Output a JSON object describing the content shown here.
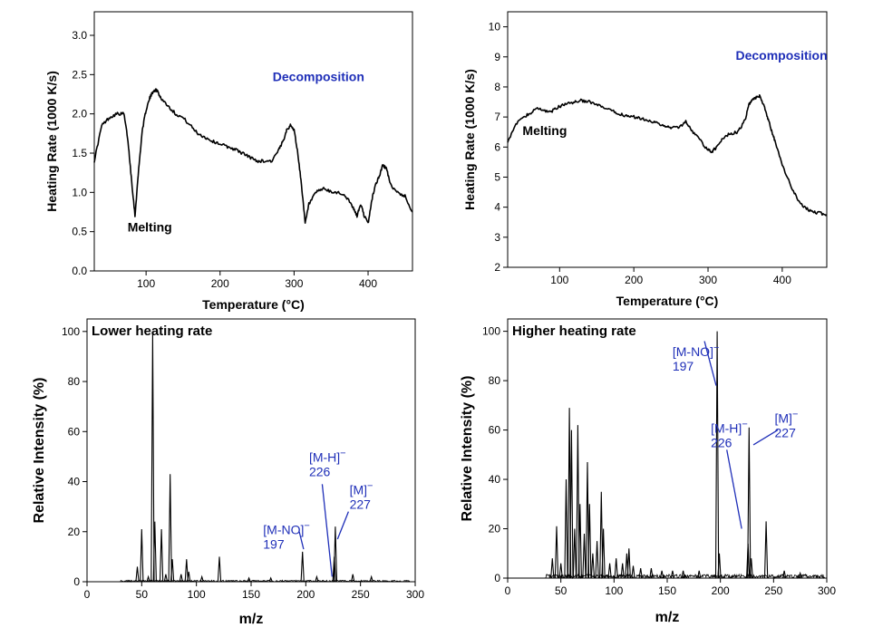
{
  "chart_data": [
    {
      "id": "heating_low",
      "type": "line",
      "xlabel": "Temperature (°C)",
      "ylabel": "Heating Rate (1000 K/s)",
      "xlim": [
        30,
        460
      ],
      "ylim": [
        0,
        3.3
      ],
      "xticks": [
        100,
        200,
        300,
        400
      ],
      "yticks": [
        0.0,
        0.5,
        1.0,
        1.5,
        2.0,
        2.5,
        3.0
      ],
      "ytick_decimals": 1,
      "annotations": [
        {
          "text": "Melting",
          "x": 105,
          "y": 0.5,
          "color": "black"
        },
        {
          "text": "Decomposition",
          "x": 333,
          "y": 2.42,
          "color": "blue"
        }
      ],
      "series": [
        {
          "name": "heating rate",
          "x": [
            30,
            40,
            50,
            60,
            70,
            75,
            80,
            85,
            90,
            95,
            100,
            105,
            110,
            115,
            120,
            130,
            140,
            150,
            160,
            170,
            180,
            190,
            200,
            210,
            220,
            230,
            240,
            250,
            260,
            270,
            280,
            285,
            290,
            295,
            300,
            305,
            310,
            315,
            320,
            330,
            340,
            350,
            360,
            370,
            380,
            385,
            390,
            395,
            400,
            405,
            410,
            415,
            420,
            425,
            430,
            440,
            450,
            460
          ],
          "y": [
            1.4,
            1.85,
            1.95,
            2.0,
            2.0,
            1.7,
            1.2,
            0.7,
            1.3,
            1.8,
            2.05,
            2.2,
            2.3,
            2.3,
            2.2,
            2.1,
            2.0,
            1.95,
            1.85,
            1.75,
            1.7,
            1.65,
            1.62,
            1.58,
            1.55,
            1.5,
            1.45,
            1.4,
            1.4,
            1.4,
            1.55,
            1.65,
            1.8,
            1.85,
            1.8,
            1.5,
            1.1,
            0.6,
            0.85,
            1.0,
            1.05,
            1.0,
            1.0,
            0.95,
            0.8,
            0.7,
            0.85,
            0.7,
            0.6,
            0.9,
            1.1,
            1.2,
            1.35,
            1.3,
            1.1,
            1.0,
            0.95,
            0.75
          ]
        }
      ]
    },
    {
      "id": "heating_high",
      "type": "line",
      "xlabel": "Temperature (°C)",
      "ylabel": "Heating Rate (1000 K/s)",
      "xlim": [
        30,
        460
      ],
      "ylim": [
        2,
        10.5
      ],
      "xticks": [
        100,
        200,
        300,
        400
      ],
      "yticks": [
        2,
        3,
        4,
        5,
        6,
        7,
        8,
        9,
        10
      ],
      "ytick_decimals": 0,
      "annotations": [
        {
          "text": "Melting",
          "x": 80,
          "y": 6.4,
          "color": "black"
        },
        {
          "text": "Decomposition",
          "x": 399,
          "y": 8.9,
          "color": "blue"
        }
      ],
      "series": [
        {
          "name": "heating rate",
          "x": [
            30,
            40,
            50,
            60,
            70,
            80,
            90,
            100,
            110,
            120,
            130,
            140,
            150,
            160,
            170,
            180,
            190,
            200,
            210,
            220,
            230,
            240,
            250,
            260,
            270,
            280,
            290,
            300,
            305,
            310,
            320,
            330,
            340,
            350,
            355,
            360,
            365,
            370,
            375,
            380,
            385,
            390,
            400,
            410,
            420,
            430,
            440,
            450,
            460
          ],
          "y": [
            6.2,
            6.7,
            7.0,
            7.1,
            7.3,
            7.2,
            7.2,
            7.35,
            7.45,
            7.5,
            7.55,
            7.5,
            7.4,
            7.3,
            7.2,
            7.1,
            7.05,
            7.0,
            6.95,
            6.9,
            6.8,
            6.7,
            6.65,
            6.65,
            6.85,
            6.5,
            6.2,
            5.9,
            5.85,
            5.95,
            6.3,
            6.45,
            6.5,
            6.9,
            7.4,
            7.6,
            7.65,
            7.7,
            7.4,
            7.0,
            6.6,
            6.2,
            5.4,
            4.8,
            4.3,
            4.0,
            3.85,
            3.8,
            3.75
          ]
        }
      ]
    },
    {
      "id": "ms_low",
      "type": "line",
      "title": "Lower heating rate",
      "xlabel": "m/z",
      "ylabel": "Relative Intensity (%)",
      "xlim": [
        0,
        300
      ],
      "ylim": [
        0,
        105
      ],
      "xticks": [
        0,
        50,
        100,
        150,
        200,
        250,
        300
      ],
      "yticks": [
        0,
        20,
        40,
        60,
        80,
        100
      ],
      "ytick_decimals": 0,
      "noise_start": 30,
      "noise_end": 295,
      "noise_level": 0.6,
      "peaks": [
        {
          "mz": 46,
          "i": 6
        },
        {
          "mz": 50,
          "i": 21
        },
        {
          "mz": 56,
          "i": 2
        },
        {
          "mz": 60,
          "i": 100
        },
        {
          "mz": 62,
          "i": 24
        },
        {
          "mz": 68,
          "i": 21
        },
        {
          "mz": 72,
          "i": 3
        },
        {
          "mz": 76,
          "i": 43
        },
        {
          "mz": 78,
          "i": 9
        },
        {
          "mz": 86,
          "i": 3
        },
        {
          "mz": 91,
          "i": 9
        },
        {
          "mz": 93,
          "i": 4
        },
        {
          "mz": 105,
          "i": 2
        },
        {
          "mz": 121,
          "i": 10
        },
        {
          "mz": 148,
          "i": 1.5
        },
        {
          "mz": 168,
          "i": 1.5
        },
        {
          "mz": 197,
          "i": 12
        },
        {
          "mz": 210,
          "i": 2
        },
        {
          "mz": 226,
          "i": 10
        },
        {
          "mz": 227,
          "i": 22
        },
        {
          "mz": 243,
          "i": 3
        },
        {
          "mz": 260,
          "i": 2
        }
      ],
      "peak_labels": [
        {
          "name": "[M-NO]",
          "charge": "−",
          "value": "197",
          "text_x": 161,
          "text_y": 19,
          "line": [
            [
              194,
              20
            ],
            [
              198,
              13
            ]
          ]
        },
        {
          "name": "[M-H]",
          "charge": "−",
          "value": "226",
          "text_x": 203,
          "text_y": 48,
          "line": [
            [
              215,
              39
            ],
            [
              224,
              2
            ]
          ]
        },
        {
          "name": "[M]",
          "charge": "−",
          "value": "227",
          "text_x": 240,
          "text_y": 35,
          "line": [
            [
              239,
              28
            ],
            [
              229,
              17
            ]
          ]
        }
      ]
    },
    {
      "id": "ms_high",
      "type": "line",
      "title": "Higher heating rate",
      "xlabel": "m/z",
      "ylabel": "Relative Intensity (%)",
      "xlim": [
        0,
        300
      ],
      "ylim": [
        0,
        105
      ],
      "xticks": [
        0,
        50,
        100,
        150,
        200,
        250,
        300
      ],
      "yticks": [
        0,
        20,
        40,
        60,
        80,
        100
      ],
      "ytick_decimals": 0,
      "noise_start": 35,
      "noise_end": 298,
      "noise_level": 1.5,
      "peaks": [
        {
          "mz": 42,
          "i": 8
        },
        {
          "mz": 46,
          "i": 21
        },
        {
          "mz": 50,
          "i": 6
        },
        {
          "mz": 55,
          "i": 40
        },
        {
          "mz": 58,
          "i": 69
        },
        {
          "mz": 60,
          "i": 60
        },
        {
          "mz": 63,
          "i": 20
        },
        {
          "mz": 66,
          "i": 62
        },
        {
          "mz": 68,
          "i": 30
        },
        {
          "mz": 72,
          "i": 18
        },
        {
          "mz": 75,
          "i": 47
        },
        {
          "mz": 77,
          "i": 30
        },
        {
          "mz": 80,
          "i": 10
        },
        {
          "mz": 84,
          "i": 15
        },
        {
          "mz": 88,
          "i": 35
        },
        {
          "mz": 90,
          "i": 20
        },
        {
          "mz": 96,
          "i": 6
        },
        {
          "mz": 102,
          "i": 8
        },
        {
          "mz": 108,
          "i": 6
        },
        {
          "mz": 112,
          "i": 10
        },
        {
          "mz": 114,
          "i": 12
        },
        {
          "mz": 118,
          "i": 5
        },
        {
          "mz": 125,
          "i": 4
        },
        {
          "mz": 135,
          "i": 4
        },
        {
          "mz": 145,
          "i": 3
        },
        {
          "mz": 155,
          "i": 3
        },
        {
          "mz": 165,
          "i": 3
        },
        {
          "mz": 180,
          "i": 3
        },
        {
          "mz": 197,
          "i": 100
        },
        {
          "mz": 199,
          "i": 10
        },
        {
          "mz": 226,
          "i": 14
        },
        {
          "mz": 227,
          "i": 61
        },
        {
          "mz": 229,
          "i": 8
        },
        {
          "mz": 243,
          "i": 23
        },
        {
          "mz": 260,
          "i": 3
        },
        {
          "mz": 275,
          "i": 2
        }
      ],
      "peak_labels": [
        {
          "name": "[M-NO]",
          "charge": "−",
          "value": "197",
          "text_x": 155,
          "text_y": 90,
          "line": [
            [
              185,
              96
            ],
            [
              196,
              78
            ]
          ]
        },
        {
          "name": "[M-H]",
          "charge": "−",
          "value": "226",
          "text_x": 191,
          "text_y": 59,
          "line": [
            [
              206,
              52
            ],
            [
              220,
              20
            ]
          ]
        },
        {
          "name": "[M]",
          "charge": "−",
          "value": "227",
          "text_x": 251,
          "text_y": 63,
          "line": [
            [
              254,
              60
            ],
            [
              231,
              54
            ]
          ]
        }
      ]
    }
  ]
}
